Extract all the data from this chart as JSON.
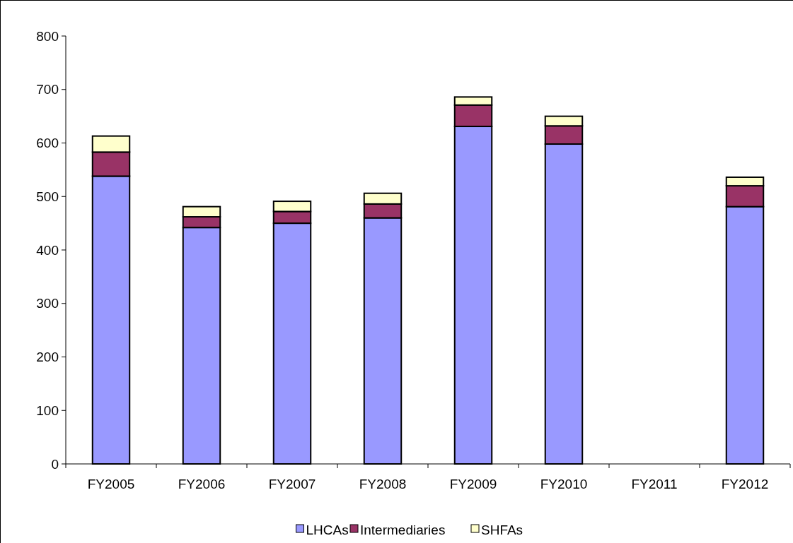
{
  "chart_data": {
    "type": "bar",
    "stacked": true,
    "categories": [
      "FY2005",
      "FY2006",
      "FY2007",
      "FY2008",
      "FY2009",
      "FY2010",
      "FY2011",
      "FY2012"
    ],
    "series": [
      {
        "name": "LHCAs",
        "color": "#9999ff",
        "values": [
          538,
          442,
          450,
          460,
          631,
          598,
          null,
          481
        ]
      },
      {
        "name": "Intermediaries",
        "color": "#993366",
        "values": [
          45,
          20,
          22,
          26,
          40,
          34,
          null,
          39
        ]
      },
      {
        "name": "SHFAs",
        "color": "#ffffcc",
        "values": [
          30,
          19,
          19,
          20,
          15,
          18,
          null,
          16
        ]
      }
    ],
    "ylim": [
      0,
      800
    ],
    "yticks": [
      0,
      100,
      200,
      300,
      400,
      500,
      600,
      700,
      800
    ],
    "grid": false,
    "legend": "bottom"
  }
}
